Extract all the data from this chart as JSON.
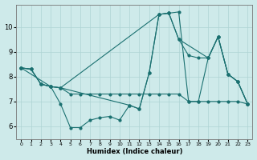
{
  "title": "",
  "xlabel": "Humidex (Indice chaleur)",
  "background_color": "#ceeaea",
  "line_color": "#1a7070",
  "grid_color": "#aed4d4",
  "xlim": [
    -0.5,
    23.5
  ],
  "ylim": [
    5.5,
    10.9
  ],
  "yticks": [
    6,
    7,
    8,
    9,
    10
  ],
  "xticks": [
    0,
    1,
    2,
    3,
    4,
    5,
    6,
    7,
    8,
    9,
    10,
    11,
    12,
    13,
    14,
    15,
    16,
    17,
    18,
    19,
    20,
    21,
    22,
    23
  ],
  "lines": [
    {
      "x": [
        0,
        1,
        2,
        3,
        4,
        5,
        6,
        7,
        8,
        9,
        10,
        11,
        12,
        13,
        14,
        15,
        16,
        17,
        18,
        19,
        20,
        21,
        22,
        23
      ],
      "y": [
        8.35,
        8.3,
        7.7,
        7.6,
        6.9,
        5.95,
        5.95,
        6.25,
        6.35,
        6.4,
        6.25,
        6.85,
        6.7,
        8.15,
        10.5,
        10.55,
        10.6,
        7.0,
        7.0,
        8.75,
        9.6,
        8.1,
        7.8,
        6.9
      ]
    },
    {
      "x": [
        0,
        1,
        2,
        3,
        4,
        5,
        6,
        7,
        8,
        9,
        10,
        11,
        12,
        13,
        14,
        15,
        16,
        17,
        18,
        19,
        20,
        21,
        22,
        23
      ],
      "y": [
        8.35,
        8.3,
        7.7,
        7.6,
        7.55,
        7.3,
        7.3,
        7.3,
        7.3,
        7.3,
        7.3,
        7.3,
        7.3,
        7.3,
        7.3,
        7.3,
        7.3,
        7.0,
        7.0,
        7.0,
        7.0,
        7.0,
        7.0,
        6.9
      ]
    },
    {
      "x": [
        0,
        1,
        2,
        3,
        4,
        14,
        15,
        16,
        19,
        20,
        21,
        22,
        23
      ],
      "y": [
        8.35,
        8.3,
        7.7,
        7.6,
        7.55,
        10.5,
        10.55,
        9.5,
        8.75,
        9.6,
        8.1,
        7.8,
        6.9
      ]
    },
    {
      "x": [
        0,
        3,
        4,
        11,
        12,
        13,
        14,
        15,
        16,
        17,
        18,
        19,
        20,
        21,
        22,
        23
      ],
      "y": [
        8.35,
        7.6,
        7.55,
        6.85,
        6.7,
        8.15,
        10.5,
        10.55,
        9.5,
        8.85,
        8.75,
        8.75,
        9.6,
        8.1,
        7.8,
        6.9
      ]
    }
  ]
}
